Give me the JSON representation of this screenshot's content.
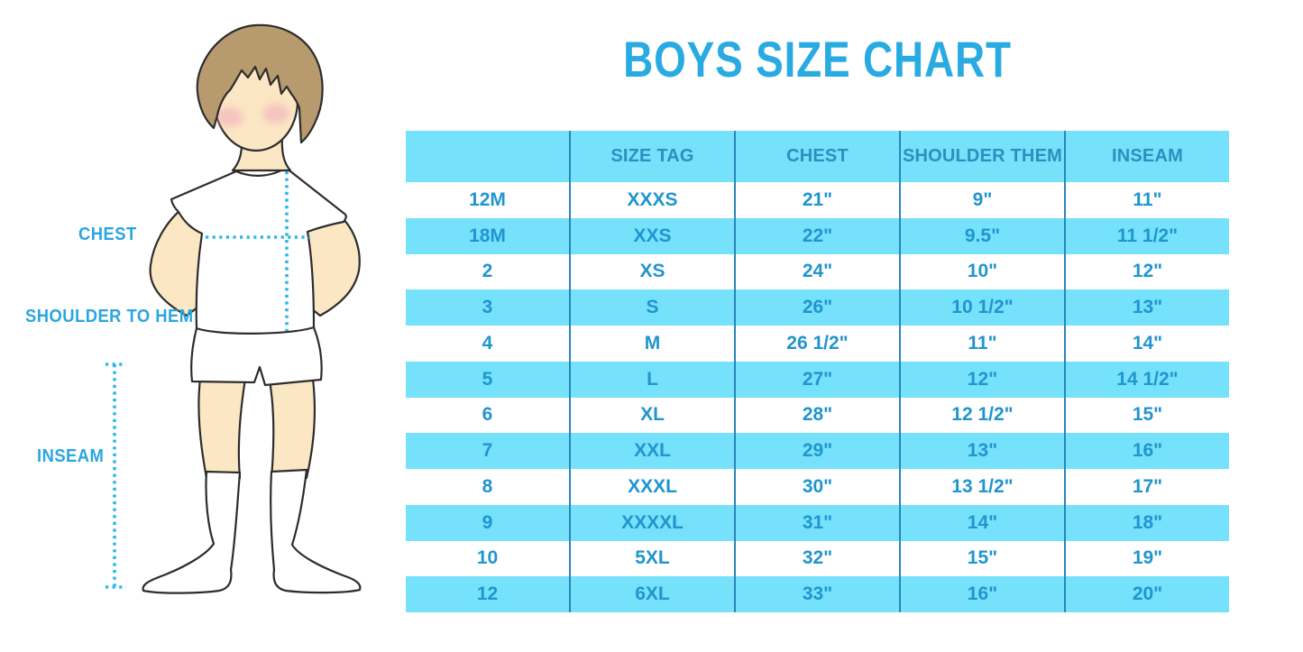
{
  "title": "BOYS SIZE CHART",
  "figure": {
    "labels": {
      "chest": "CHEST",
      "shoulder_to_hem": "SHOULDER TO HEM",
      "inseam": "INSEAM"
    }
  },
  "chart_data": {
    "type": "table",
    "title": "BOYS SIZE CHART",
    "columns": [
      "",
      "SIZE TAG",
      "CHEST",
      "SHOULDER THEM",
      "INSEAM"
    ],
    "rows": [
      [
        "12M",
        "XXXS",
        "21\"",
        "9\"",
        "11\""
      ],
      [
        "18M",
        "XXS",
        "22\"",
        "9.5\"",
        "11 1/2\""
      ],
      [
        "2",
        "XS",
        "24\"",
        "10\"",
        "12\""
      ],
      [
        "3",
        "S",
        "26\"",
        "10 1/2\"",
        "13\""
      ],
      [
        "4",
        "M",
        "26 1/2\"",
        "11\"",
        "14\""
      ],
      [
        "5",
        "L",
        "27\"",
        "12\"",
        "14 1/2\""
      ],
      [
        "6",
        "XL",
        "28\"",
        "12 1/2\"",
        "15\""
      ],
      [
        "7",
        "XXL",
        "29\"",
        "13\"",
        "16\""
      ],
      [
        "8",
        "XXXL",
        "30\"",
        "13 1/2\"",
        "17\""
      ],
      [
        "9",
        "XXXXL",
        "31\"",
        "14\"",
        "18\""
      ],
      [
        "10",
        "5XL",
        "32\"",
        "15\"",
        "19\""
      ],
      [
        "12",
        "6XL",
        "33\"",
        "16\"",
        "20\""
      ]
    ],
    "layout": {
      "header_fill": "striped",
      "stripe_pattern": "header cyan, then white/cyan alternating",
      "grid": "vertical separators only"
    }
  },
  "colors": {
    "title_blue": "#29abe2",
    "table_text_blue": "#2095ce",
    "band_cyan": "#76e1fb",
    "separator_blue": "#2a85b8",
    "dotted_line_cyan": "#2bb8eb",
    "skin": "#fbe7c3",
    "hair": "#b79a6e",
    "outline": "#2d2d2d"
  }
}
